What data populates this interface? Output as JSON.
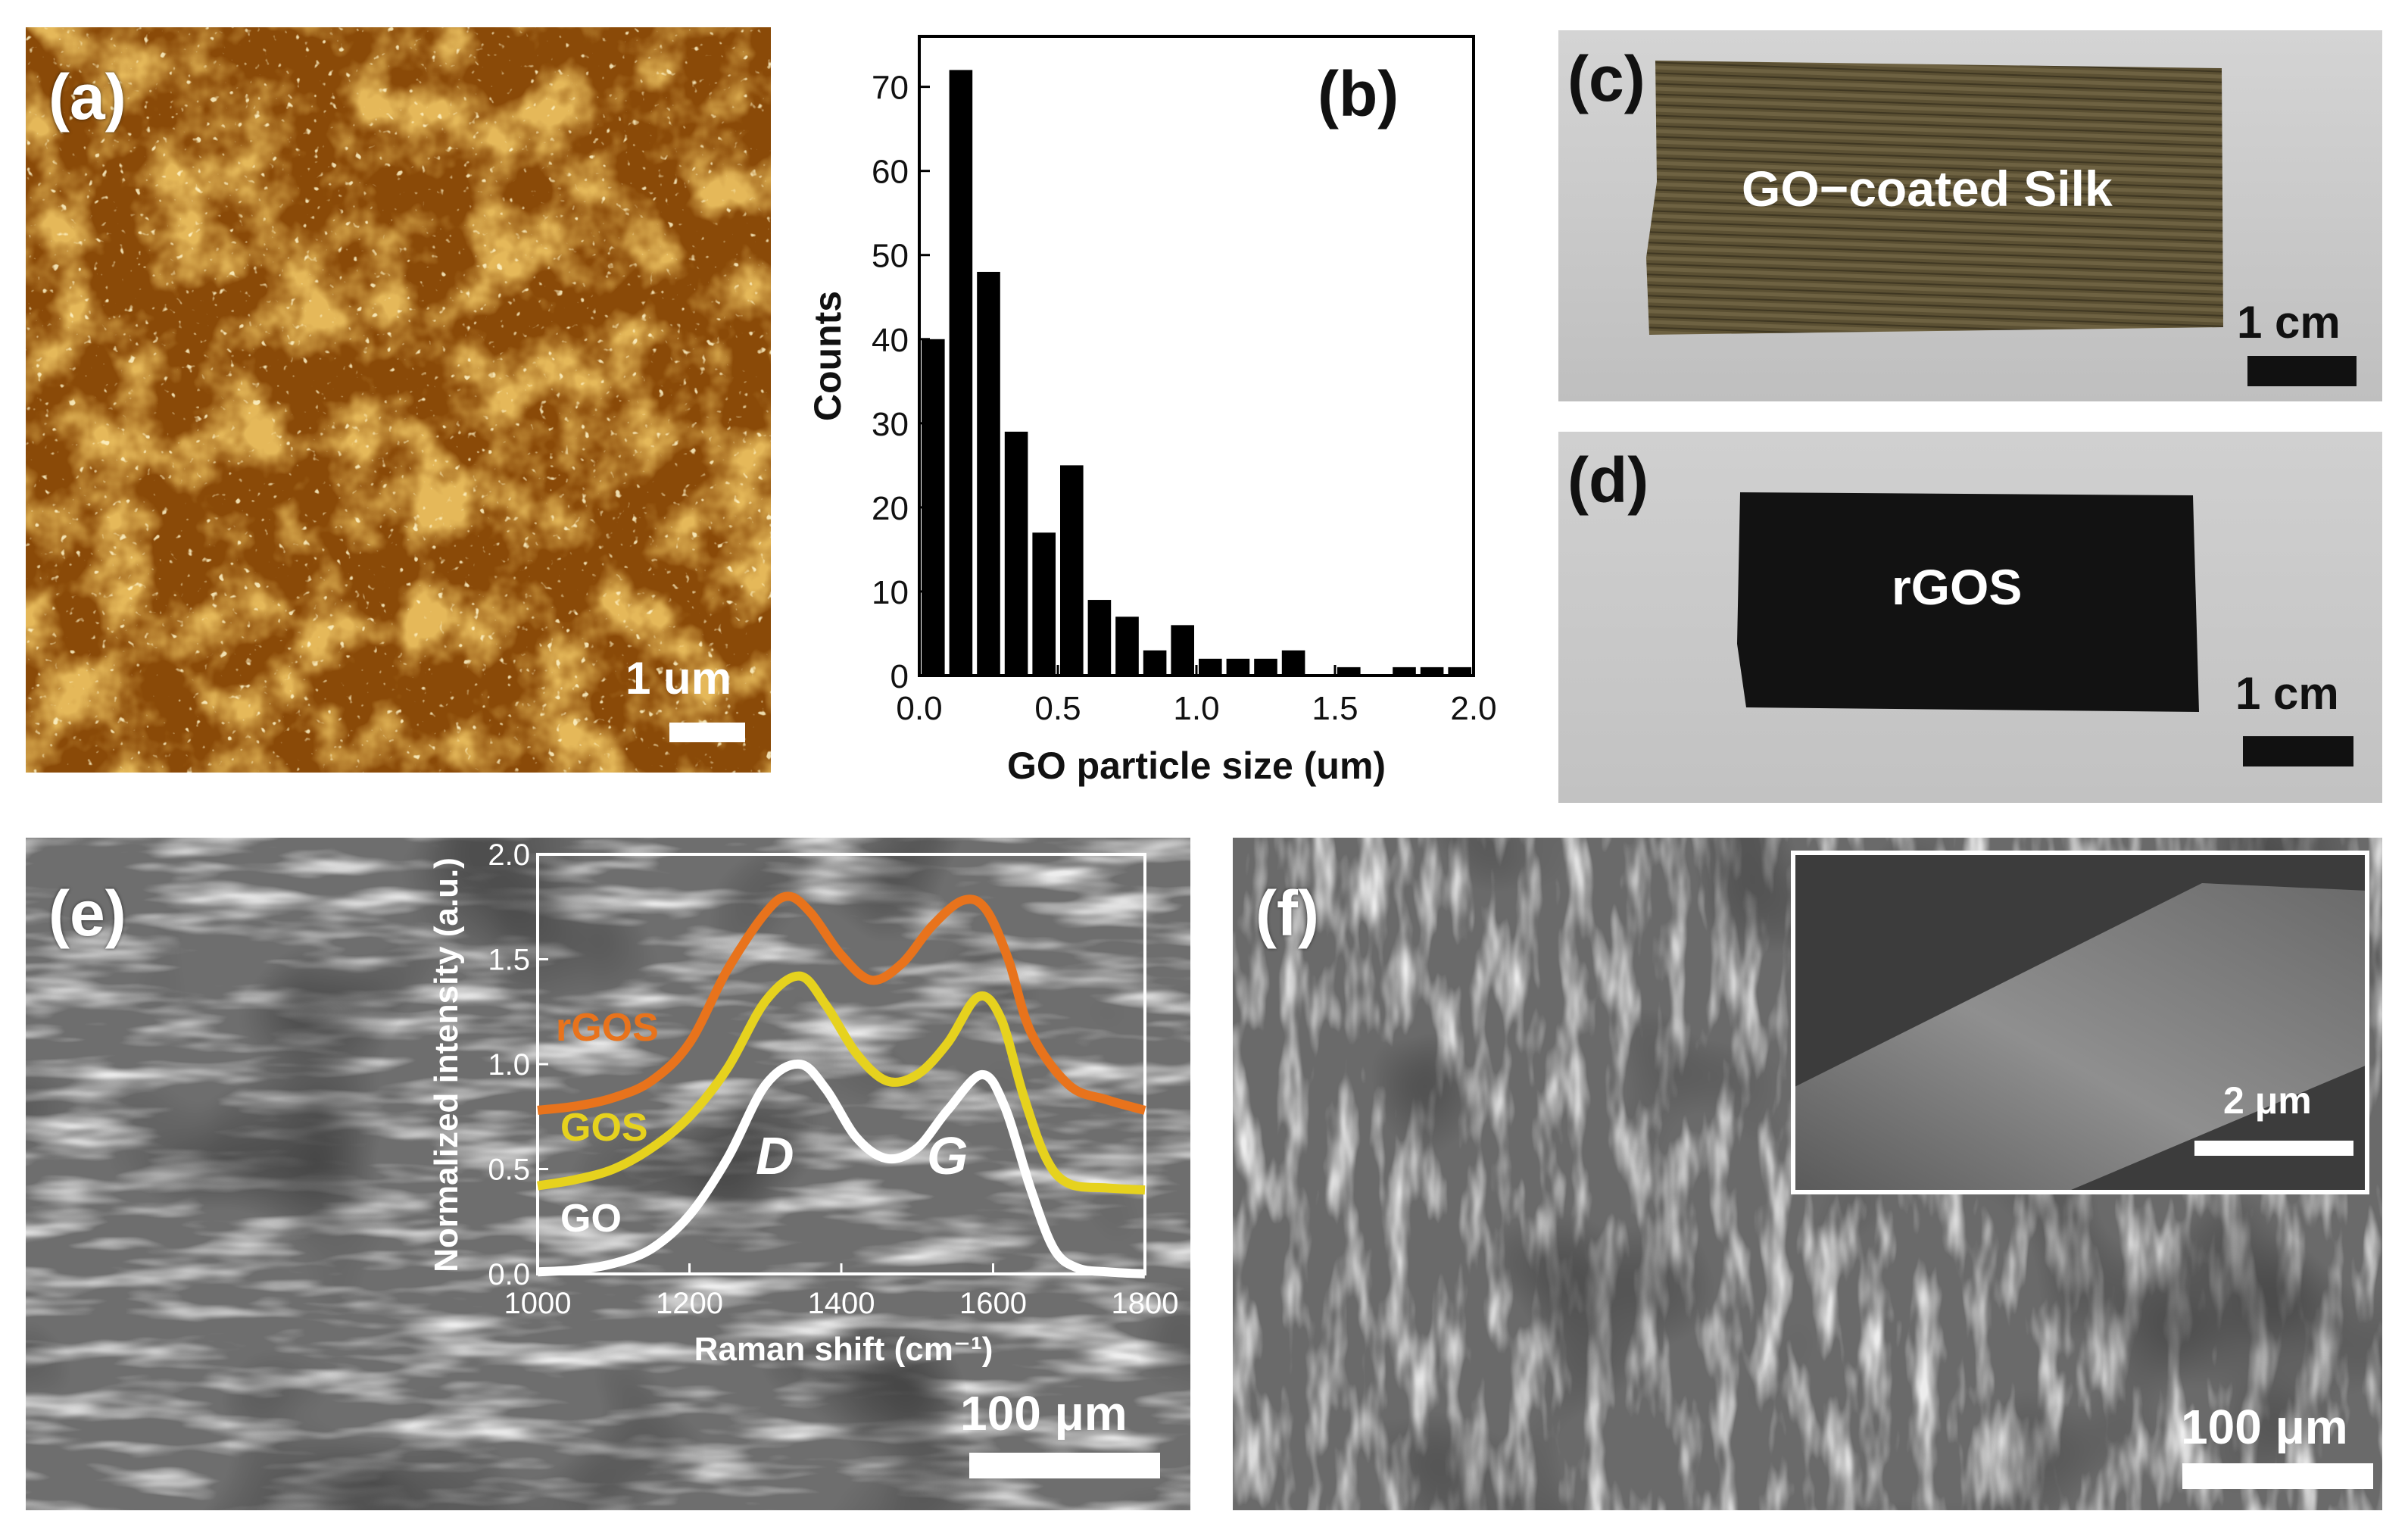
{
  "figure": {
    "panel_a": {
      "label": "(a)",
      "scale_text": "1 um"
    },
    "panel_b": {
      "label": "(b)",
      "chart_data": {
        "type": "bar",
        "title": "",
        "xlabel": "GO particle size (um)",
        "ylabel": "Counts",
        "xlim": [
          0,
          2.0
        ],
        "ylim": [
          0,
          76
        ],
        "xticks": [
          "0.0",
          "0.5",
          "1.0",
          "1.5",
          "2.0"
        ],
        "yticks": [
          "0",
          "10",
          "20",
          "30",
          "40",
          "50",
          "60",
          "70"
        ],
        "bin_width": 0.1,
        "x": [
          0.05,
          0.15,
          0.25,
          0.35,
          0.45,
          0.55,
          0.65,
          0.75,
          0.85,
          0.95,
          1.05,
          1.15,
          1.25,
          1.35,
          1.45,
          1.55,
          1.65,
          1.75,
          1.85,
          1.95
        ],
        "values": [
          40,
          72,
          48,
          29,
          17,
          25,
          9,
          7,
          3,
          6,
          2,
          2,
          2,
          3,
          0,
          1,
          0,
          1,
          1,
          1
        ]
      }
    },
    "panel_c": {
      "label": "(c)",
      "sample_text": "GO−coated Silk",
      "scale_text": "1 cm"
    },
    "panel_d": {
      "label": "(d)",
      "sample_text": "rGOS",
      "scale_text": "1 cm"
    },
    "panel_e": {
      "label": "(e)",
      "scale_text": "100 μm",
      "inset_chart_data": {
        "type": "line",
        "xlabel": "Raman shift (cm⁻¹)",
        "ylabel": "Normalized intensity (a.u.)",
        "xlim": [
          1000,
          1800
        ],
        "ylim": [
          0,
          2.0
        ],
        "xticks": [
          "1000",
          "1200",
          "1400",
          "1600",
          "1800"
        ],
        "yticks": [
          "0.0",
          "0.5",
          "1.0",
          "1.5",
          "2.0"
        ],
        "peak_labels": [
          "D",
          "G"
        ],
        "series": [
          {
            "name": "rGOS",
            "color": "#e8731c",
            "x": [
              1000,
              1050,
              1100,
              1150,
              1200,
              1250,
              1300,
              1330,
              1360,
              1400,
              1440,
              1480,
              1520,
              1560,
              1590,
              1620,
              1650,
              1700,
              1750,
              1800
            ],
            "y": [
              0.78,
              0.8,
              0.84,
              0.92,
              1.1,
              1.45,
              1.72,
              1.8,
              1.72,
              1.52,
              1.4,
              1.48,
              1.66,
              1.78,
              1.74,
              1.5,
              1.15,
              0.9,
              0.83,
              0.78
            ]
          },
          {
            "name": "GOS",
            "color": "#e6d21e",
            "x": [
              1000,
              1050,
              1100,
              1150,
              1200,
              1250,
              1300,
              1345,
              1380,
              1420,
              1460,
              1500,
              1540,
              1580,
              1610,
              1640,
              1670,
              1700,
              1750,
              1800
            ],
            "y": [
              0.42,
              0.45,
              0.5,
              0.6,
              0.75,
              0.98,
              1.3,
              1.42,
              1.28,
              1.05,
              0.92,
              0.95,
              1.1,
              1.32,
              1.22,
              0.85,
              0.55,
              0.43,
              0.41,
              0.4
            ]
          },
          {
            "name": "GO",
            "color": "#ffffff",
            "x": [
              1000,
              1050,
              1100,
              1150,
              1200,
              1250,
              1300,
              1345,
              1380,
              1420,
              1460,
              1500,
              1540,
              1585,
              1615,
              1650,
              1680,
              1710,
              1750,
              1800
            ],
            "y": [
              0.01,
              0.02,
              0.05,
              0.12,
              0.28,
              0.55,
              0.9,
              1.0,
              0.88,
              0.65,
              0.55,
              0.6,
              0.78,
              0.95,
              0.8,
              0.4,
              0.12,
              0.03,
              0.01,
              0.0
            ]
          }
        ]
      }
    },
    "panel_f": {
      "label": "(f)",
      "scale_text": "100 μm",
      "inset_scale_text": "2 μm"
    },
    "colors": {
      "afm_base": "#8a4a08",
      "afm_light": "#c27a15",
      "sem_base": "#6e6e6e",
      "photo_bg": "#c9c9c9",
      "go_silk": "#5b5033",
      "rgos": "#121212",
      "rgos_line": "#e8731c",
      "gos_line": "#e6d21e",
      "go_line": "#ffffff"
    }
  }
}
